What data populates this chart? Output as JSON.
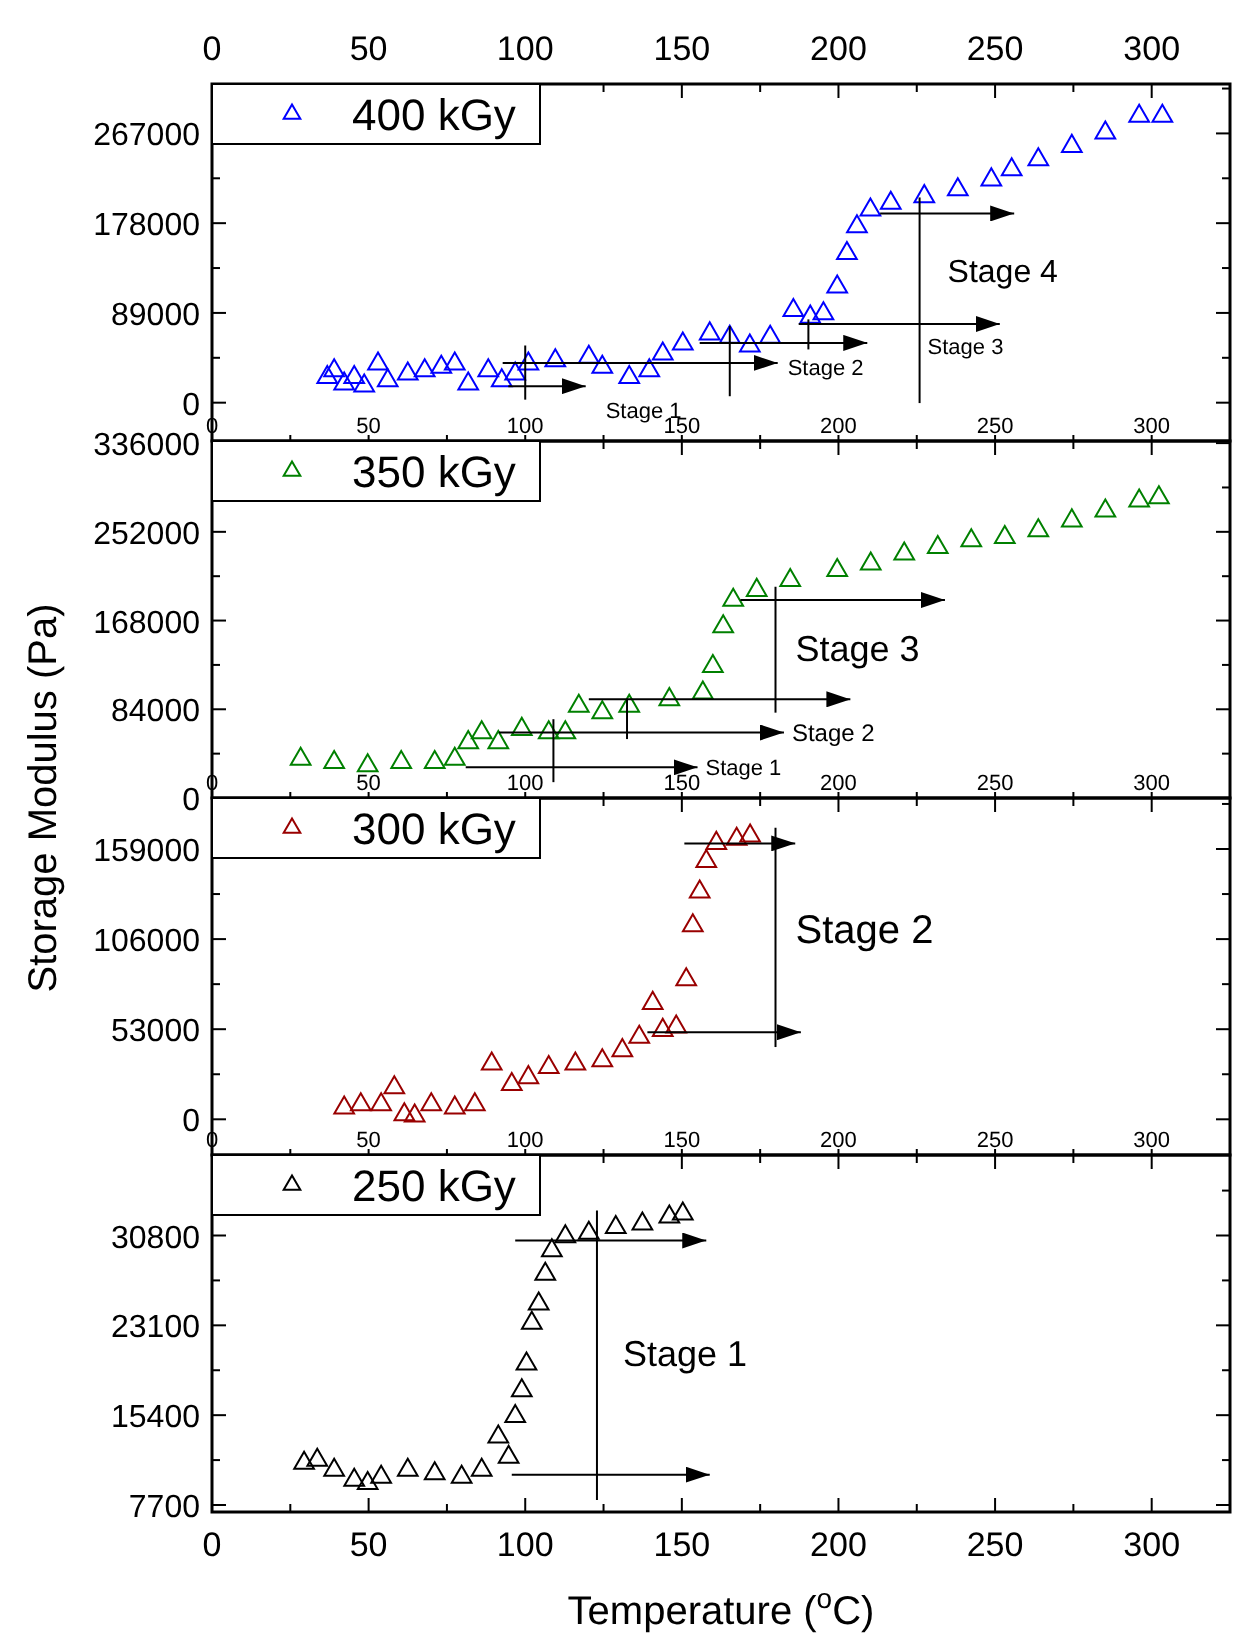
{
  "chart_data": [
    {
      "type": "scatter",
      "ylabel": "Storage Modulus (Pa)",
      "xlim": [
        0,
        325
      ],
      "x2lim": [
        0,
        325
      ],
      "xticks": [
        0,
        {
          "value": 25,
          "label": null
        },
        50,
        {
          "value": 75,
          "label": null
        },
        100,
        {
          "value": 125,
          "label": null
        },
        150,
        {
          "value": 175,
          "label": null
        },
        200,
        {
          "value": 225,
          "label": null
        },
        250,
        {
          "value": 275,
          "label": null
        },
        300
      ],
      "x2ticks": [
        0,
        {
          "value": 25,
          "label": null
        },
        50,
        {
          "value": 75,
          "label": null
        },
        100,
        {
          "value": 125,
          "label": null
        },
        150,
        {
          "value": 175,
          "label": null
        },
        200,
        {
          "value": 225,
          "label": null
        },
        250,
        {
          "value": 275,
          "label": null
        },
        300
      ],
      "ylim": [
        -38000,
        316000
      ],
      "yticks": [
        0,
        {
          "value": 44500,
          "label": null
        },
        89000,
        {
          "value": 133500,
          "label": null
        },
        178000,
        {
          "value": 222500,
          "label": null
        },
        267000,
        {
          "value": 311500,
          "label": null
        }
      ],
      "legend": "top left",
      "marker": "triangle",
      "grid": false,
      "annotations": [
        {
          "text": "Stage 1",
          "x": 119.3,
          "y": 16300
        },
        {
          "text": "Stage 2",
          "x": 180.6,
          "y": 39400
        },
        {
          "text": "Stage 3",
          "x": 225.9,
          "y": 56100
        },
        {
          "text": "Stage 4",
          "x": 225.9,
          "y": 130400
        }
      ],
      "series": [
        {
          "name": "400 kGy",
          "color": "#0000ff",
          "x": [
            36.8,
            39,
            42.2,
            45.4,
            48.6,
            53,
            56.1,
            62.5,
            67.9,
            73.2,
            77.5,
            81.8,
            88.2,
            92.5,
            96.8,
            101,
            109.6,
            120.3,
            124.6,
            133.2,
            139.6,
            143.9,
            150.3,
            158.9,
            165.3,
            171.7,
            178.2,
            185.6,
            191,
            195.2,
            199.6,
            202.7,
            205.9,
            210.2,
            216.7,
            227.4,
            238.1,
            248.8,
            255.3,
            263.8,
            274.5,
            285.2,
            296,
            303.4
          ],
          "values": [
            25200,
            31900,
            18600,
            25200,
            16600,
            38500,
            21900,
            28500,
            31900,
            35200,
            38500,
            18600,
            31900,
            21900,
            28500,
            38500,
            41800,
            45200,
            35200,
            25200,
            31900,
            48500,
            58400,
            68400,
            65100,
            56400,
            65100,
            91600,
            85000,
            88300,
            114900,
            148100,
            174600,
            191200,
            197900,
            204500,
            211200,
            221100,
            231100,
            241000,
            254300,
            267600,
            284200,
            284200
          ]
        },
        {
          "type": "line",
          "marker": "none",
          "color": "#000000",
          "x": [
            100,
            100
          ],
          "values": [
            56700,
            3000
          ]
        },
        {
          "type": "line",
          "marker": "none",
          "color": "#000000",
          "x": [
            94.6,
            119.3
          ],
          "values": [
            16300,
            16300
          ]
        },
        {
          "type": "line",
          "marker": "none",
          "color": "#000000",
          "x": [
            165.3,
            165.3
          ],
          "values": [
            76000,
            6400
          ]
        },
        {
          "type": "line",
          "marker": "none",
          "color": "#000000",
          "x": [
            92.8,
            180.6
          ],
          "values": [
            39400,
            39400
          ]
        },
        {
          "type": "line",
          "marker": "none",
          "color": "#000000",
          "x": [
            190.4,
            190.4
          ],
          "values": [
            82600,
            52800
          ]
        },
        {
          "type": "line",
          "marker": "none",
          "color": "#000000",
          "x": [
            155.7,
            209.2
          ],
          "values": [
            59300,
            59300
          ]
        },
        {
          "type": "line",
          "marker": "none",
          "color": "#000000",
          "x": [
            225.9,
            225.9
          ],
          "values": [
            203500,
            -400
          ]
        },
        {
          "type": "line",
          "marker": "none",
          "color": "#000000",
          "x": [
            213.3,
            256.1
          ],
          "values": [
            187600,
            187600
          ]
        },
        {
          "type": "line",
          "marker": "none",
          "color": "#000000",
          "x": [
            187.3,
            251.5
          ],
          "values": [
            78000,
            78000
          ]
        }
      ]
    },
    {
      "type": "scatter",
      "xlim": [
        0,
        325
      ],
      "xticks": [
        0,
        {
          "value": 25,
          "label": null
        },
        50,
        {
          "value": 75,
          "label": null
        },
        100,
        {
          "value": 125,
          "label": null
        },
        150,
        {
          "value": 175,
          "label": null
        },
        200,
        {
          "value": 225,
          "label": null
        },
        250,
        {
          "value": 275,
          "label": null
        },
        300
      ],
      "ylim": [
        0,
        338000
      ],
      "yticks": [
        0,
        {
          "value": 42000,
          "label": null
        },
        84000,
        {
          "value": 126000,
          "label": null
        },
        168000,
        {
          "value": 210000,
          "label": null
        },
        252000,
        {
          "value": 294000,
          "label": null
        },
        336000
      ],
      "legend": "top left",
      "marker": "triangle",
      "grid": false,
      "annotations": [
        {
          "text": "Stage 1",
          "x": 155,
          "y": 29000
        },
        {
          "text": "Stage 2",
          "x": 182.6,
          "y": 62000
        },
        {
          "text": "Stage 3",
          "x": 179.9,
          "y": 141700
        }
      ],
      "series": [
        {
          "name": "350 kGy",
          "color": "#008000",
          "x": [
            28.3,
            39,
            49.7,
            60.4,
            71.1,
            77.5,
            81.8,
            86.1,
            91.4,
            98.9,
            107.5,
            112.8,
            117.1,
            124.6,
            133.2,
            146,
            156.7,
            159.9,
            163.2,
            166.4,
            173.9,
            184.6,
            199.6,
            210.3,
            221,
            231.7,
            242.4,
            253.1,
            263.8,
            274.5,
            285.2,
            296,
            302.3
          ],
          "values": [
            36900,
            33800,
            30700,
            33800,
            33800,
            36900,
            52600,
            62000,
            52600,
            65100,
            62000,
            62000,
            87100,
            80800,
            87100,
            93300,
            99600,
            124700,
            162200,
            187300,
            196700,
            206100,
            215500,
            221700,
            231100,
            237400,
            243700,
            246800,
            253100,
            262500,
            271900,
            281300,
            284400
          ]
        },
        {
          "type": "line",
          "marker": "none",
          "color": "#000000",
          "x": [
            109,
            109
          ],
          "values": [
            74600,
            15000
          ]
        },
        {
          "type": "line",
          "marker": "none",
          "color": "#000000",
          "x": [
            132.5,
            132.5
          ],
          "values": [
            93400,
            55800
          ]
        },
        {
          "type": "line",
          "marker": "none",
          "color": "#000000",
          "x": [
            179.9,
            179.9
          ],
          "values": [
            200000,
            80800
          ]
        },
        {
          "type": "line",
          "marker": "none",
          "color": "#000000",
          "x": [
            81,
            155
          ],
          "values": [
            29000,
            29000
          ]
        },
        {
          "type": "line",
          "marker": "none",
          "color": "#000000",
          "x": [
            91.6,
            182.6
          ],
          "values": [
            62000,
            62000
          ]
        },
        {
          "type": "line",
          "marker": "none",
          "color": "#000000",
          "x": [
            120.3,
            203.8
          ],
          "values": [
            93400,
            93400
          ]
        },
        {
          "type": "line",
          "marker": "none",
          "color": "#000000",
          "x": [
            168.7,
            234
          ],
          "values": [
            187400,
            187400
          ]
        }
      ]
    },
    {
      "type": "scatter",
      "xlim": [
        0,
        325
      ],
      "xticks": [
        0,
        {
          "value": 25,
          "label": null
        },
        50,
        {
          "value": 75,
          "label": null
        },
        100,
        {
          "value": 125,
          "label": null
        },
        150,
        {
          "value": 175,
          "label": null
        },
        200,
        {
          "value": 225,
          "label": null
        },
        250,
        {
          "value": 275,
          "label": null
        },
        300
      ],
      "ylim": [
        -21000,
        189000
      ],
      "yticks": [
        0,
        {
          "value": 26500,
          "label": null
        },
        53000,
        {
          "value": 79500,
          "label": null
        },
        106000,
        {
          "value": 132500,
          "label": null
        },
        159000,
        {
          "value": 185500,
          "label": null
        }
      ],
      "legend": "top left",
      "marker": "triangle",
      "grid": false,
      "annotations": [
        {
          "text": "Stage 2",
          "x": 179.9,
          "y": 112000
        }
      ],
      "series": [
        {
          "name": "300 kGy",
          "color": "#990000",
          "x": [
            42.2,
            47.5,
            54,
            58.2,
            61.4,
            64.7,
            70,
            77.5,
            83.9,
            89.3,
            95.7,
            101,
            107.5,
            116,
            124.6,
            131,
            136.4,
            140.7,
            143.9,
            148.2,
            151.4,
            153.5,
            155.7,
            157.8,
            161,
            167.5,
            171.8
          ],
          "values": [
            6700,
            8700,
            8700,
            18700,
            2800,
            2000,
            8700,
            6700,
            8700,
            32600,
            20600,
            24600,
            30600,
            32600,
            34500,
            40500,
            48400,
            68300,
            52400,
            54400,
            82200,
            113900,
            133800,
            151700,
            162400,
            164800,
            166700
          ]
        },
        {
          "type": "line",
          "marker": "none",
          "color": "#000000",
          "x": [
            179.9,
            179.9
          ],
          "values": [
            171500,
            42500
          ]
        },
        {
          "type": "line",
          "marker": "none",
          "color": "#000000",
          "x": [
            150.8,
            186.2
          ],
          "values": [
            162300,
            162300
          ]
        },
        {
          "type": "line",
          "marker": "none",
          "color": "#000000",
          "x": [
            139,
            188
          ],
          "values": [
            51200,
            51200
          ]
        }
      ]
    },
    {
      "type": "scatter",
      "xlabel": "Temperature ($^{o}$C)",
      "xlim": [
        0,
        325
      ],
      "xticks": [
        0,
        {
          "value": 25,
          "label": null
        },
        50,
        {
          "value": 75,
          "label": null
        },
        100,
        {
          "value": 125,
          "label": null
        },
        150,
        {
          "value": 175,
          "label": null
        },
        200,
        {
          "value": 225,
          "label": null
        },
        250,
        {
          "value": 275,
          "label": null
        },
        300
      ],
      "ylim": [
        7100,
        37700
      ],
      "yticks": [
        7700,
        {
          "value": 11550,
          "label": null
        },
        15400,
        {
          "value": 19250,
          "label": null
        },
        23100,
        {
          "value": 26950,
          "label": null
        },
        30800,
        {
          "value": 34650,
          "label": null
        }
      ],
      "legend": "top left",
      "marker": "triangle",
      "grid": false,
      "annotations": [
        {
          "text": "Stage 1",
          "x": 122.9,
          "y": 20670
        }
      ],
      "series": [
        {
          "name": "250 kGy",
          "color": "#000000",
          "x": [
            29.4,
            33.6,
            39,
            45.4,
            49.7,
            54,
            62.5,
            71.1,
            79.7,
            86.1,
            91.4,
            94.7,
            96.8,
            98.9,
            100.4,
            102.1,
            104.3,
            106.4,
            108.5,
            112.8,
            120.3,
            128.9,
            137.4,
            146,
            150.3
          ],
          "values": [
            11300,
            11550,
            10700,
            9840,
            9550,
            10100,
            10700,
            10400,
            10100,
            10700,
            13550,
            11800,
            15300,
            17500,
            19800,
            23300,
            24950,
            27500,
            29500,
            30700,
            31000,
            31500,
            31800,
            32400,
            32650
          ]
        },
        {
          "type": "line",
          "marker": "none",
          "color": "#000000",
          "x": [
            122.9,
            122.9
          ],
          "values": [
            32940,
            8130
          ]
        },
        {
          "type": "line",
          "marker": "none",
          "color": "#000000",
          "x": [
            96.8,
            157.8
          ],
          "values": [
            30370,
            30370
          ]
        },
        {
          "type": "line",
          "marker": "none",
          "color": "#000000",
          "x": [
            95.7,
            158.9
          ],
          "values": [
            10300,
            10300
          ]
        }
      ]
    }
  ]
}
